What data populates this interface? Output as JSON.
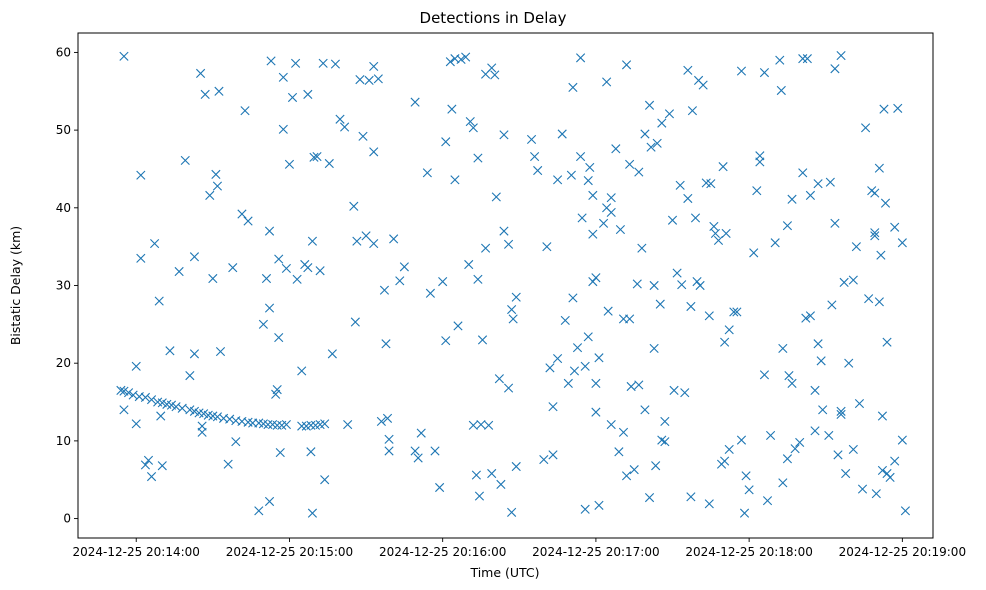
{
  "chart_data": {
    "type": "scatter",
    "title": "Detections in Delay",
    "xlabel": "Time (UTC)",
    "ylabel": "Bistatic Delay (km)",
    "marker": "x",
    "color": "#1f77b4",
    "x_unit": "minutes since 2024-12-25 20:14:00",
    "xlim": [
      -0.38,
      5.2
    ],
    "ylim": [
      -2.5,
      62.5
    ],
    "x_ticks": [
      {
        "value": 0,
        "label": "2024-12-25 20:14:00"
      },
      {
        "value": 1,
        "label": "2024-12-25 20:15:00"
      },
      {
        "value": 2,
        "label": "2024-12-25 20:16:00"
      },
      {
        "value": 3,
        "label": "2024-12-25 20:17:00"
      },
      {
        "value": 4,
        "label": "2024-12-25 20:18:00"
      },
      {
        "value": 5,
        "label": "2024-12-25 20:19:00"
      }
    ],
    "y_ticks": [
      {
        "value": 0,
        "label": "0"
      },
      {
        "value": 10,
        "label": "10"
      },
      {
        "value": 20,
        "label": "20"
      },
      {
        "value": 30,
        "label": "30"
      },
      {
        "value": 40,
        "label": "40"
      },
      {
        "value": 50,
        "label": "50"
      },
      {
        "value": 60,
        "label": "60"
      }
    ],
    "grid": false,
    "legend": "none",
    "points": [
      [
        -0.1,
        16.5
      ],
      [
        -0.08,
        16.4
      ],
      [
        -0.05,
        16.2
      ],
      [
        -0.02,
        15.9
      ],
      [
        0.02,
        15.7
      ],
      [
        0.06,
        15.6
      ],
      [
        0.1,
        15.3
      ],
      [
        0.14,
        15.0
      ],
      [
        0.17,
        14.9
      ],
      [
        0.2,
        14.7
      ],
      [
        0.23,
        14.6
      ],
      [
        0.26,
        14.4
      ],
      [
        0.3,
        14.2
      ],
      [
        0.35,
        14.0
      ],
      [
        0.38,
        13.8
      ],
      [
        0.41,
        13.6
      ],
      [
        0.44,
        13.5
      ],
      [
        0.47,
        13.3
      ],
      [
        0.5,
        13.2
      ],
      [
        0.53,
        13.1
      ],
      [
        0.57,
        12.9
      ],
      [
        0.61,
        12.8
      ],
      [
        0.65,
        12.6
      ],
      [
        0.69,
        12.5
      ],
      [
        0.73,
        12.4
      ],
      [
        0.76,
        12.3
      ],
      [
        0.8,
        12.3
      ],
      [
        0.83,
        12.2
      ],
      [
        0.86,
        12.1
      ],
      [
        0.89,
        12.1
      ],
      [
        0.92,
        12.0
      ],
      [
        0.95,
        12.0
      ],
      [
        0.98,
        12.1
      ],
      [
        1.08,
        11.9
      ],
      [
        1.11,
        11.9
      ],
      [
        1.14,
        12.0
      ],
      [
        1.17,
        12.0
      ],
      [
        1.2,
        12.1
      ],
      [
        1.23,
        12.2
      ],
      [
        -0.08,
        59.5
      ],
      [
        -0.08,
        14.0
      ],
      [
        0.0,
        19.6
      ],
      [
        0.0,
        12.2
      ],
      [
        0.03,
        44.2
      ],
      [
        0.03,
        33.5
      ],
      [
        0.06,
        6.9
      ],
      [
        0.08,
        7.5
      ],
      [
        0.1,
        5.4
      ],
      [
        0.12,
        35.4
      ],
      [
        0.15,
        28.0
      ],
      [
        0.16,
        13.2
      ],
      [
        0.17,
        6.8
      ],
      [
        0.22,
        21.6
      ],
      [
        0.28,
        31.8
      ],
      [
        0.32,
        46.1
      ],
      [
        0.35,
        18.4
      ],
      [
        0.38,
        33.7
      ],
      [
        0.38,
        21.2
      ],
      [
        0.42,
        57.3
      ],
      [
        0.43,
        11.9
      ],
      [
        0.43,
        11.1
      ],
      [
        0.45,
        54.6
      ],
      [
        0.48,
        41.6
      ],
      [
        0.5,
        30.9
      ],
      [
        0.52,
        44.3
      ],
      [
        0.53,
        42.8
      ],
      [
        0.54,
        55.0
      ],
      [
        0.55,
        21.5
      ],
      [
        0.6,
        7.0
      ],
      [
        0.63,
        32.3
      ],
      [
        0.65,
        9.9
      ],
      [
        0.69,
        39.2
      ],
      [
        0.71,
        52.5
      ],
      [
        0.73,
        38.3
      ],
      [
        0.8,
        1.0
      ],
      [
        0.83,
        25.0
      ],
      [
        0.85,
        30.9
      ],
      [
        0.87,
        37.0
      ],
      [
        0.87,
        27.1
      ],
      [
        0.87,
        2.2
      ],
      [
        0.88,
        58.9
      ],
      [
        0.91,
        16.0
      ],
      [
        0.92,
        16.6
      ],
      [
        0.93,
        33.4
      ],
      [
        0.93,
        23.3
      ],
      [
        0.94,
        8.5
      ],
      [
        0.96,
        56.8
      ],
      [
        0.96,
        50.1
      ],
      [
        0.98,
        32.2
      ],
      [
        1.0,
        45.6
      ],
      [
        1.02,
        54.2
      ],
      [
        1.04,
        58.6
      ],
      [
        1.05,
        30.8
      ],
      [
        1.08,
        19.0
      ],
      [
        1.1,
        32.7
      ],
      [
        1.12,
        54.6
      ],
      [
        1.12,
        32.3
      ],
      [
        1.14,
        8.6
      ],
      [
        1.15,
        35.7
      ],
      [
        1.15,
        0.7
      ],
      [
        1.16,
        46.5
      ],
      [
        1.18,
        46.6
      ],
      [
        1.2,
        31.9
      ],
      [
        1.22,
        58.6
      ],
      [
        1.23,
        5.0
      ],
      [
        1.26,
        45.7
      ],
      [
        1.28,
        21.2
      ],
      [
        1.3,
        58.5
      ],
      [
        1.33,
        51.4
      ],
      [
        1.36,
        50.4
      ],
      [
        1.38,
        12.1
      ],
      [
        1.42,
        40.2
      ],
      [
        1.43,
        25.3
      ],
      [
        1.44,
        35.7
      ],
      [
        1.46,
        56.5
      ],
      [
        1.48,
        49.2
      ],
      [
        1.5,
        36.4
      ],
      [
        1.52,
        56.4
      ],
      [
        1.55,
        58.2
      ],
      [
        1.55,
        47.2
      ],
      [
        1.55,
        35.4
      ],
      [
        1.58,
        56.6
      ],
      [
        1.6,
        12.5
      ],
      [
        1.62,
        29.4
      ],
      [
        1.63,
        22.5
      ],
      [
        1.64,
        12.9
      ],
      [
        1.65,
        10.2
      ],
      [
        1.65,
        8.7
      ],
      [
        1.68,
        36.0
      ],
      [
        1.72,
        30.6
      ],
      [
        1.75,
        32.4
      ],
      [
        1.82,
        53.6
      ],
      [
        1.82,
        8.7
      ],
      [
        1.84,
        7.8
      ],
      [
        1.86,
        11.0
      ],
      [
        1.9,
        44.5
      ],
      [
        1.92,
        29.0
      ],
      [
        1.95,
        8.7
      ],
      [
        1.98,
        4.0
      ],
      [
        2.0,
        30.5
      ],
      [
        2.02,
        22.9
      ],
      [
        2.02,
        48.5
      ],
      [
        2.05,
        58.8
      ],
      [
        2.06,
        52.7
      ],
      [
        2.08,
        43.6
      ],
      [
        2.08,
        59.2
      ],
      [
        2.1,
        24.8
      ],
      [
        2.12,
        59.1
      ],
      [
        2.15,
        59.4
      ],
      [
        2.17,
        32.7
      ],
      [
        2.18,
        51.1
      ],
      [
        2.2,
        50.3
      ],
      [
        2.2,
        12.0
      ],
      [
        2.22,
        5.6
      ],
      [
        2.23,
        46.4
      ],
      [
        2.23,
        30.8
      ],
      [
        2.24,
        2.9
      ],
      [
        2.25,
        12.1
      ],
      [
        2.26,
        23.0
      ],
      [
        2.28,
        57.2
      ],
      [
        2.28,
        34.8
      ],
      [
        2.3,
        12.0
      ],
      [
        2.32,
        58.0
      ],
      [
        2.32,
        5.8
      ],
      [
        2.34,
        57.1
      ],
      [
        2.35,
        41.4
      ],
      [
        2.37,
        18.0
      ],
      [
        2.38,
        4.4
      ],
      [
        2.4,
        49.4
      ],
      [
        2.4,
        37.0
      ],
      [
        2.43,
        35.3
      ],
      [
        2.43,
        16.8
      ],
      [
        2.45,
        26.9
      ],
      [
        2.45,
        0.8
      ],
      [
        2.46,
        25.7
      ],
      [
        2.48,
        28.5
      ],
      [
        2.48,
        6.7
      ],
      [
        2.58,
        48.8
      ],
      [
        2.6,
        46.6
      ],
      [
        2.62,
        44.8
      ],
      [
        2.66,
        7.6
      ],
      [
        2.68,
        35.0
      ],
      [
        2.7,
        19.4
      ],
      [
        2.72,
        14.4
      ],
      [
        2.72,
        8.2
      ],
      [
        2.75,
        43.6
      ],
      [
        2.75,
        20.6
      ],
      [
        2.78,
        49.5
      ],
      [
        2.8,
        25.5
      ],
      [
        2.82,
        17.4
      ],
      [
        2.84,
        44.2
      ],
      [
        2.85,
        55.5
      ],
      [
        2.85,
        28.4
      ],
      [
        2.86,
        19.0
      ],
      [
        2.88,
        22.0
      ],
      [
        2.9,
        46.6
      ],
      [
        2.9,
        59.3
      ],
      [
        2.91,
        38.7
      ],
      [
        2.93,
        19.6
      ],
      [
        2.93,
        1.2
      ],
      [
        2.95,
        43.5
      ],
      [
        2.95,
        23.4
      ],
      [
        2.96,
        45.2
      ],
      [
        2.98,
        41.6
      ],
      [
        2.98,
        36.6
      ],
      [
        2.98,
        30.5
      ],
      [
        3.0,
        31.0
      ],
      [
        3.0,
        17.4
      ],
      [
        3.0,
        13.7
      ],
      [
        3.02,
        20.7
      ],
      [
        3.02,
        1.7
      ],
      [
        3.05,
        38.0
      ],
      [
        3.07,
        56.2
      ],
      [
        3.07,
        40.0
      ],
      [
        3.08,
        26.7
      ],
      [
        3.1,
        41.3
      ],
      [
        3.1,
        39.4
      ],
      [
        3.1,
        12.1
      ],
      [
        3.13,
        47.6
      ],
      [
        3.15,
        8.6
      ],
      [
        3.16,
        37.2
      ],
      [
        3.18,
        25.7
      ],
      [
        3.18,
        11.1
      ],
      [
        3.2,
        58.4
      ],
      [
        3.2,
        5.5
      ],
      [
        3.22,
        45.6
      ],
      [
        3.22,
        25.7
      ],
      [
        3.23,
        17.0
      ],
      [
        3.25,
        6.3
      ],
      [
        3.27,
        30.2
      ],
      [
        3.28,
        44.6
      ],
      [
        3.28,
        17.2
      ],
      [
        3.3,
        34.8
      ],
      [
        3.32,
        49.5
      ],
      [
        3.32,
        14.0
      ],
      [
        3.35,
        53.2
      ],
      [
        3.35,
        2.7
      ],
      [
        3.36,
        47.8
      ],
      [
        3.38,
        30.0
      ],
      [
        3.38,
        21.9
      ],
      [
        3.39,
        6.8
      ],
      [
        3.4,
        48.3
      ],
      [
        3.42,
        27.6
      ],
      [
        3.43,
        50.9
      ],
      [
        3.43,
        10.1
      ],
      [
        3.45,
        12.5
      ],
      [
        3.45,
        9.9
      ],
      [
        3.48,
        52.1
      ],
      [
        3.5,
        38.4
      ],
      [
        3.51,
        16.5
      ],
      [
        3.53,
        31.6
      ],
      [
        3.55,
        42.9
      ],
      [
        3.56,
        30.1
      ],
      [
        3.58,
        16.2
      ],
      [
        3.6,
        57.7
      ],
      [
        3.6,
        41.2
      ],
      [
        3.62,
        27.3
      ],
      [
        3.62,
        2.8
      ],
      [
        3.63,
        52.5
      ],
      [
        3.65,
        38.7
      ],
      [
        3.66,
        30.5
      ],
      [
        3.67,
        56.4
      ],
      [
        3.68,
        30.0
      ],
      [
        3.7,
        55.8
      ],
      [
        3.72,
        43.2
      ],
      [
        3.74,
        26.1
      ],
      [
        3.74,
        1.9
      ],
      [
        3.75,
        43.1
      ],
      [
        3.77,
        37.6
      ],
      [
        3.78,
        36.7
      ],
      [
        3.8,
        35.8
      ],
      [
        3.82,
        7.0
      ],
      [
        3.83,
        45.3
      ],
      [
        3.84,
        22.7
      ],
      [
        3.84,
        7.4
      ],
      [
        3.85,
        36.7
      ],
      [
        3.87,
        24.3
      ],
      [
        3.87,
        8.9
      ],
      [
        3.9,
        26.6
      ],
      [
        3.92,
        26.6
      ],
      [
        3.95,
        57.6
      ],
      [
        3.95,
        10.1
      ],
      [
        3.97,
        0.7
      ],
      [
        3.98,
        5.5
      ],
      [
        4.0,
        3.7
      ],
      [
        4.03,
        34.2
      ],
      [
        4.05,
        42.2
      ],
      [
        4.07,
        46.7
      ],
      [
        4.07,
        45.9
      ],
      [
        4.1,
        57.4
      ],
      [
        4.1,
        18.5
      ],
      [
        4.12,
        2.3
      ],
      [
        4.14,
        10.7
      ],
      [
        4.17,
        35.5
      ],
      [
        4.2,
        59.0
      ],
      [
        4.21,
        55.1
      ],
      [
        4.22,
        21.9
      ],
      [
        4.22,
        4.6
      ],
      [
        4.25,
        37.7
      ],
      [
        4.25,
        7.7
      ],
      [
        4.26,
        18.4
      ],
      [
        4.28,
        41.1
      ],
      [
        4.28,
        17.4
      ],
      [
        4.3,
        9.0
      ],
      [
        4.33,
        9.8
      ],
      [
        4.35,
        59.2
      ],
      [
        4.35,
        44.5
      ],
      [
        4.37,
        25.8
      ],
      [
        4.38,
        59.2
      ],
      [
        4.4,
        41.6
      ],
      [
        4.4,
        26.1
      ],
      [
        4.43,
        16.5
      ],
      [
        4.43,
        11.3
      ],
      [
        4.45,
        43.1
      ],
      [
        4.45,
        22.5
      ],
      [
        4.47,
        20.3
      ],
      [
        4.48,
        14.0
      ],
      [
        4.52,
        10.7
      ],
      [
        4.53,
        43.3
      ],
      [
        4.54,
        27.5
      ],
      [
        4.56,
        57.9
      ],
      [
        4.56,
        38.0
      ],
      [
        4.58,
        8.2
      ],
      [
        4.6,
        59.6
      ],
      [
        4.6,
        13.8
      ],
      [
        4.6,
        13.4
      ],
      [
        4.62,
        30.4
      ],
      [
        4.63,
        5.8
      ],
      [
        4.65,
        20.0
      ],
      [
        4.68,
        30.7
      ],
      [
        4.68,
        8.9
      ],
      [
        4.7,
        35.0
      ],
      [
        4.72,
        14.8
      ],
      [
        4.74,
        3.8
      ],
      [
        4.76,
        50.3
      ],
      [
        4.78,
        28.3
      ],
      [
        4.8,
        42.2
      ],
      [
        4.82,
        36.8
      ],
      [
        4.82,
        36.4
      ],
      [
        4.82,
        41.9
      ],
      [
        4.83,
        3.2
      ],
      [
        4.85,
        45.1
      ],
      [
        4.85,
        27.9
      ],
      [
        4.86,
        33.9
      ],
      [
        4.87,
        13.2
      ],
      [
        4.87,
        6.2
      ],
      [
        4.88,
        52.7
      ],
      [
        4.89,
        40.6
      ],
      [
        4.9,
        22.7
      ],
      [
        4.9,
        5.8
      ],
      [
        4.92,
        5.3
      ],
      [
        4.95,
        37.5
      ],
      [
        4.95,
        7.4
      ],
      [
        4.97,
        52.8
      ],
      [
        5.0,
        35.5
      ],
      [
        5.0,
        10.1
      ],
      [
        5.02,
        1.0
      ]
    ]
  }
}
